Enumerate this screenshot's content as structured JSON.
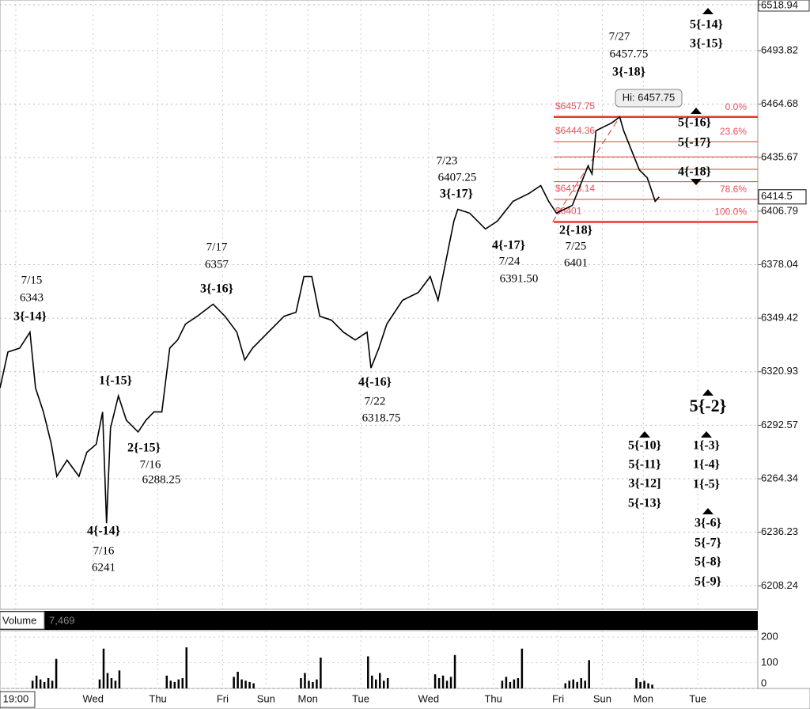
{
  "chart_data": {
    "type": "line",
    "log_scale": true,
    "grid": true,
    "color": "#000000",
    "x": [
      0,
      2,
      5,
      7.6,
      9,
      11,
      13,
      14.4,
      17,
      20,
      22,
      24.4,
      26,
      27,
      28,
      30,
      32,
      35,
      37,
      39,
      41,
      43,
      45,
      47,
      50,
      54,
      57,
      60,
      62,
      64,
      68,
      72,
      75,
      77,
      79,
      81,
      84,
      87,
      90,
      93,
      94,
      96,
      98,
      102,
      106,
      109,
      111,
      113,
      115,
      116,
      119,
      123,
      126,
      130,
      134,
      137,
      139,
      141,
      143,
      145,
      147,
      149,
      150,
      151,
      153,
      155,
      157,
      158,
      160,
      162,
      164,
      166,
      167
    ],
    "values": [
      6312.3,
      6331.4,
      6333.5,
      6342.0,
      6312.3,
      6299.6,
      6282.6,
      6265.6,
      6274.1,
      6265.6,
      6278.3,
      6282.6,
      6299.6,
      6241,
      6291.1,
      6308.1,
      6295.3,
      6289.0,
      6295.3,
      6299.6,
      6299.6,
      6333.5,
      6337.8,
      6346.3,
      6350.5,
      6356.9,
      6350.5,
      6342.0,
      6327.2,
      6333.5,
      6342.0,
      6350.5,
      6352.6,
      6371.7,
      6371.7,
      6350.5,
      6348.4,
      6342.0,
      6337.8,
      6342.0,
      6322.9,
      6333.5,
      6346.3,
      6359.0,
      6363.2,
      6371.7,
      6359.0,
      6380.2,
      6401.4,
      6407.8,
      6405.7,
      6397.2,
      6401.4,
      6412.1,
      6416.3,
      6420.6,
      6412.1,
      6405.7,
      6407.8,
      6409.9,
      6420.6,
      6431.2,
      6426.9,
      6450.3,
      6452.4,
      6454.5,
      6457.75,
      6450.3,
      6439.7,
      6429.0,
      6424.8,
      6412.1,
      6414.5
    ],
    "xlim": [
      0,
      192
    ],
    "ylim": [
      6196,
      6521.5
    ],
    "xticks": [
      {
        "value": 4,
        "label": "19:00"
      },
      {
        "value": 23.6,
        "label": "Wed"
      },
      {
        "value": 40,
        "label": "Thu"
      },
      {
        "value": 56.4,
        "label": "Fri"
      },
      {
        "value": 67.4,
        "label": "Sun"
      },
      {
        "value": 78,
        "label": "Mon"
      },
      {
        "value": 91.4,
        "label": "Tue"
      },
      {
        "value": 108.6,
        "label": "Wed"
      },
      {
        "value": 125,
        "label": "Thu"
      },
      {
        "value": 141.4,
        "label": "Fri"
      },
      {
        "value": 152.6,
        "label": "Sun"
      },
      {
        "value": 163,
        "label": "Mon"
      },
      {
        "value": 176.8,
        "label": "Tue"
      }
    ],
    "yticks": [
      6518.94,
      6493.82,
      6464.68,
      6435.67,
      6406.79,
      6378.04,
      6349.42,
      6320.93,
      6292.57,
      6264.34,
      6236.23,
      6208.24
    ],
    "last_price": 6414.5,
    "hi_label": "Hi: 6457.75",
    "fibonacci": {
      "high": 6457.75,
      "low": 6401,
      "color": "#e53935",
      "levels": [
        {
          "value": 0,
          "label": "0.0%",
          "price_label": "$6457.75"
        },
        {
          "value": 23.6,
          "label": "23.6%",
          "price_label": "$6444.36"
        },
        {
          "value": 38.2
        },
        {
          "value": 50
        },
        {
          "value": 61.8
        },
        {
          "value": 78.6,
          "label": "78.6%",
          "price_label": "$6413.14"
        },
        {
          "value": 100,
          "label": "100.0%",
          "price_label": "$6401"
        }
      ]
    },
    "annotations": [
      [
        "7/15",
        "6343",
        "3{-14}"
      ],
      [
        "1{-15}"
      ],
      [
        "2{-15}",
        "7/16",
        "6288.25"
      ],
      [
        "4{-14}",
        "7/16",
        "6241"
      ],
      [
        "7/17",
        "6357",
        "3{-16}"
      ],
      [
        "4{-16}",
        "7/22",
        "6318.75"
      ],
      [
        "7/23",
        "6407.25",
        "3{-17}"
      ],
      [
        "4{-17}",
        "7/24",
        "6391.50"
      ],
      [
        "2{-18}",
        "7/25",
        "6401"
      ],
      [
        "7/27",
        "6457.75",
        "3{-18}"
      ],
      [
        "5{-14}",
        "3{-15}"
      ],
      [
        "5{-16}",
        "5{-17}"
      ],
      [
        "4{-18}"
      ],
      [
        "5{-2}"
      ],
      [
        "5{-10}",
        "5{-11}",
        "3{-12]",
        "5{-13}"
      ],
      [
        "1{-3}",
        "1{-4}",
        "1{-5}"
      ],
      [
        "3{-6}",
        "5{-7}",
        "5{-8}",
        "5{-9}"
      ]
    ],
    "volume": {
      "title": "Volume",
      "last_label": "7,469",
      "color": "#000000",
      "x": [
        8,
        9,
        10,
        11,
        12,
        13,
        14,
        25,
        26,
        27,
        28,
        29,
        30,
        42,
        43,
        44,
        45,
        46,
        47,
        59,
        60,
        61,
        62,
        63,
        64,
        76,
        77,
        78,
        79,
        80,
        81,
        93,
        94,
        95,
        96,
        97,
        98,
        110,
        111,
        112,
        113,
        114,
        115,
        127,
        128,
        129,
        130,
        131,
        132,
        143,
        144,
        145,
        146,
        147,
        148,
        149,
        161,
        162,
        163,
        164,
        165
      ],
      "values": [
        30,
        50,
        35,
        25,
        40,
        30,
        115,
        35,
        155,
        60,
        40,
        30,
        70,
        50,
        30,
        25,
        35,
        40,
        160,
        45,
        65,
        35,
        30,
        25,
        20,
        40,
        60,
        30,
        25,
        35,
        120,
        125,
        50,
        35,
        60,
        30,
        40,
        55,
        40,
        50,
        30,
        45,
        130,
        30,
        45,
        25,
        35,
        40,
        155,
        20,
        30,
        35,
        25,
        40,
        30,
        110,
        40,
        25,
        30,
        20,
        15
      ],
      "ylim": [
        0,
        225
      ],
      "yticks": [
        0,
        100,
        200
      ]
    }
  }
}
